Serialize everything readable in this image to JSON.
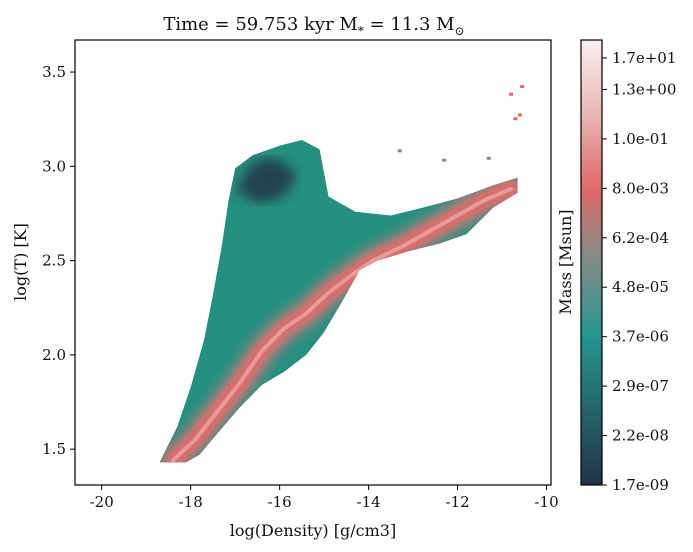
{
  "chart_data": {
    "type": "heatmap",
    "title": "Time = 59.753 kyr    M$_*$ = 11.3 M$_\\odot$",
    "title_display": "Time = 59.753 kyr    M",
    "title_parts": {
      "main": "Time = 59.753 kyr    M",
      "sub1": "*",
      "mid": " = 11.3 M",
      "sub2": "⊙"
    },
    "xlabel": "log(Density) [g/cm3]",
    "ylabel": "log(T) [K]",
    "xlim": [
      -20.6,
      -9.9
    ],
    "ylim": [
      1.31,
      3.67
    ],
    "xticks": [
      -20,
      -18,
      -16,
      -14,
      -12,
      -10
    ],
    "yticks": [
      1.5,
      2.0,
      2.5,
      3.0,
      3.5
    ],
    "xtick_labels": [
      "-20",
      "-18",
      "-16",
      "-14",
      "-12",
      "-10"
    ],
    "ytick_labels": [
      "1.5",
      "2.0",
      "2.5",
      "3.0",
      "3.5"
    ],
    "colorbar": {
      "label": "Mass [Msun]",
      "scale": "log",
      "tick_labels": [
        "1.7e-09",
        "2.2e-08",
        "2.9e-07",
        "3.7e-06",
        "4.8e-05",
        "6.2e-04",
        "8.0e-03",
        "1.0e-01",
        "1.3e+00",
        "1.7e+01"
      ],
      "colors": [
        "#223446",
        "#24656a",
        "#229590",
        "#7f8c87",
        "#de6a68",
        "#eab7b7",
        "#f8f0f0"
      ]
    },
    "region": {
      "upper_boundary": [
        [
          -18.7,
          1.43
        ],
        [
          -18.3,
          1.62
        ],
        [
          -18.0,
          1.83
        ],
        [
          -17.7,
          2.08
        ],
        [
          -17.5,
          2.32
        ],
        [
          -17.3,
          2.58
        ],
        [
          -17.15,
          2.82
        ],
        [
          -17.0,
          2.99
        ],
        [
          -16.6,
          3.06
        ],
        [
          -16.0,
          3.11
        ],
        [
          -15.5,
          3.14
        ],
        [
          -15.1,
          3.09
        ],
        [
          -14.9,
          2.84
        ],
        [
          -14.3,
          2.76
        ],
        [
          -13.5,
          2.74
        ],
        [
          -12.8,
          2.78
        ],
        [
          -12.0,
          2.83
        ],
        [
          -11.2,
          2.9
        ],
        [
          -10.65,
          2.94
        ]
      ],
      "lower_boundary": [
        [
          -10.65,
          2.86
        ],
        [
          -11.2,
          2.78
        ],
        [
          -11.8,
          2.64
        ],
        [
          -12.4,
          2.59
        ],
        [
          -13.1,
          2.55
        ],
        [
          -13.8,
          2.5
        ],
        [
          -14.2,
          2.45
        ],
        [
          -14.6,
          2.28
        ],
        [
          -15.0,
          2.12
        ],
        [
          -15.4,
          2.0
        ],
        [
          -15.9,
          1.91
        ],
        [
          -16.4,
          1.84
        ],
        [
          -16.9,
          1.72
        ],
        [
          -17.3,
          1.61
        ],
        [
          -17.8,
          1.47
        ],
        [
          -18.1,
          1.43
        ]
      ]
    },
    "high_mass_ridge": [
      [
        -18.4,
        1.44
      ],
      [
        -17.9,
        1.55
      ],
      [
        -17.4,
        1.7
      ],
      [
        -16.9,
        1.85
      ],
      [
        -16.4,
        2.02
      ],
      [
        -15.9,
        2.14
      ],
      [
        -15.4,
        2.22
      ],
      [
        -14.9,
        2.33
      ],
      [
        -14.4,
        2.42
      ],
      [
        -13.9,
        2.5
      ],
      [
        -13.2,
        2.58
      ],
      [
        -12.6,
        2.66
      ],
      [
        -12.0,
        2.74
      ],
      [
        -11.4,
        2.82
      ],
      [
        -10.8,
        2.88
      ]
    ],
    "low_mass_clump": [
      [
        -17.0,
        2.88
      ],
      [
        -16.6,
        3.02
      ],
      [
        -16.1,
        3.05
      ],
      [
        -15.6,
        2.96
      ],
      [
        -15.9,
        2.84
      ],
      [
        -16.5,
        2.8
      ]
    ],
    "outlier_points": [
      [
        -10.55,
        3.42
      ],
      [
        -10.8,
        3.38
      ],
      [
        -10.6,
        3.27
      ],
      [
        -10.7,
        3.25
      ],
      [
        -11.3,
        3.04
      ],
      [
        -13.3,
        3.08
      ],
      [
        -12.3,
        3.03
      ]
    ]
  }
}
